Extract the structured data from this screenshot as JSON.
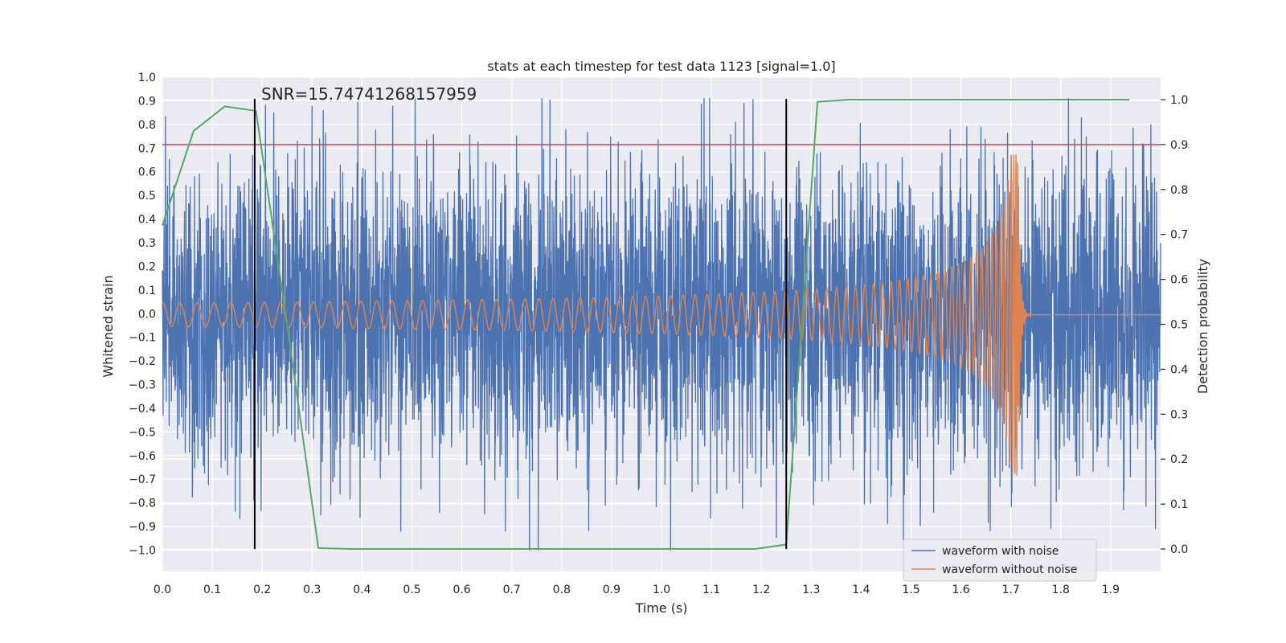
{
  "chart_data": {
    "type": "line",
    "title": "stats at each timestep for test data 1123 [signal=1.0]",
    "xlabel": "Time (s)",
    "ylabel": "Whitened strain",
    "y2label": "Detection probability",
    "annotation": "SNR=15.74741268157959",
    "xlim": [
      0.0,
      2.0
    ],
    "ylim": [
      -1.09,
      1.0
    ],
    "y2lim": [
      -0.05,
      1.05
    ],
    "xticks": [
      "0.0",
      "0.1",
      "0.2",
      "0.3",
      "0.4",
      "0.5",
      "0.6",
      "0.7",
      "0.8",
      "0.9",
      "1.0",
      "1.1",
      "1.2",
      "1.3",
      "1.4",
      "1.5",
      "1.6",
      "1.7",
      "1.8",
      "1.9"
    ],
    "yticks": [
      "1.0",
      "0.9",
      "0.8",
      "0.7",
      "0.6",
      "0.5",
      "0.4",
      "0.3",
      "0.2",
      "0.1",
      "0.0",
      "−0.1",
      "−0.2",
      "−0.3",
      "−0.4",
      "−0.5",
      "−0.6",
      "−0.7",
      "−0.8",
      "−0.9",
      "−1.0"
    ],
    "y2ticks": [
      "1.0",
      "0.9",
      "0.8",
      "0.7",
      "0.6",
      "0.5",
      "0.4",
      "0.3",
      "0.2",
      "0.1",
      "0.0"
    ],
    "threshold_y2": 0.9,
    "vertical_lines_x": [
      0.185,
      1.25
    ],
    "legend": {
      "position": "lower-right",
      "entries": [
        "waveform with noise",
        "waveform without noise"
      ]
    },
    "series": [
      {
        "name": "waveform with noise",
        "color": "#4c72b0",
        "generator": "seeded-noise",
        "n_points": 4096,
        "amplitude_sigma": 0.32,
        "range": [
          -1.0,
          0.91
        ]
      },
      {
        "name": "waveform without noise",
        "color": "#dd8452",
        "generator": "chirp",
        "t_merger": 1.715,
        "f_start_hz": 18,
        "amp_start": 0.05,
        "amp_peak": 0.68,
        "dc_offset": -0.005
      },
      {
        "name": "Detection probability",
        "color": "#55a868",
        "axis": "right",
        "x": [
          0.0,
          0.0625,
          0.125,
          0.1875,
          0.25,
          0.3125,
          0.375,
          0.4375,
          0.5,
          0.5625,
          0.625,
          0.6875,
          0.75,
          0.8125,
          0.875,
          0.9375,
          1.0,
          1.0625,
          1.125,
          1.1875,
          1.25,
          1.3125,
          1.375,
          1.4375,
          1.5,
          1.5625,
          1.625,
          1.6875,
          1.75,
          1.8125,
          1.875,
          1.9375
        ],
        "values": [
          0.72,
          0.93,
          0.985,
          0.975,
          0.5,
          0.002,
          0.0,
          0.0,
          0.0,
          0.0,
          0.0,
          0.0,
          0.0,
          0.0,
          0.0,
          0.0,
          0.0,
          0.0,
          0.0,
          0.0,
          0.01,
          0.995,
          1.0,
          1.0,
          1.0,
          1.0,
          1.0,
          1.0,
          1.0,
          1.0,
          1.0,
          1.0
        ]
      },
      {
        "name": "threshold",
        "color": "#c44e52",
        "axis": "right",
        "value": 0.9
      }
    ]
  }
}
